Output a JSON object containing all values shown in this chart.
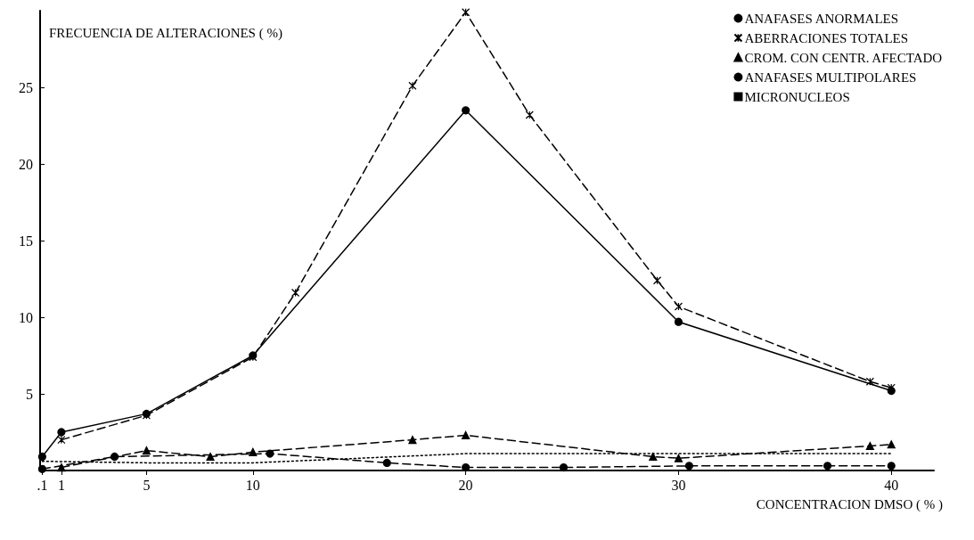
{
  "chart_data": {
    "type": "line",
    "xlabel": "CONCENTRACION DMSO ( % )",
    "ylabel": "FRECUENCIA DE ALTERACIONES ( %)",
    "xlim": [
      0,
      42
    ],
    "xticks": [
      {
        "value": 0.1,
        "label": ".1"
      },
      1,
      5,
      10,
      20,
      30,
      40
    ],
    "ylim": [
      0,
      30
    ],
    "yticks": [
      {
        "value": 0,
        "label": null
      },
      5,
      10,
      15,
      20,
      25
    ],
    "grid": false,
    "legend": "top right",
    "series": [
      {
        "name": "ANAFASES ANORMALES",
        "color": "#000000",
        "marker": "circle",
        "line_style": "solid",
        "x": [
          0.1,
          1,
          5,
          10,
          20,
          30,
          40
        ],
        "values": [
          0.9,
          2.5,
          3.7,
          7.5,
          23.5,
          9.7,
          5.2
        ]
      },
      {
        "name": "ABERRACIONES TOTALES",
        "color": "#000000",
        "marker": "cross",
        "line_style": "dashed",
        "x": [
          1,
          5,
          10,
          12,
          17.5,
          20,
          23,
          29,
          30,
          39,
          40
        ],
        "values": [
          2.0,
          3.6,
          7.4,
          11.6,
          25.1,
          29.9,
          23.2,
          12.4,
          10.7,
          5.8,
          5.4
        ]
      },
      {
        "name": "CROM. CON CENTR. AFECTADO",
        "color": "#000000",
        "marker": "triangle",
        "line_style": "dashed",
        "x": [
          1,
          5,
          8,
          10,
          17.5,
          20,
          28.8,
          30,
          39,
          40
        ],
        "values": [
          0.2,
          1.3,
          0.9,
          1.2,
          2.0,
          2.3,
          0.9,
          0.8,
          1.6,
          1.7
        ]
      },
      {
        "name": "ANAFASES MULTIPOLARES",
        "color": "#000000",
        "marker": "circle",
        "line_style": "dashed",
        "x": [
          0.1,
          3.5,
          10.8,
          16.3,
          20,
          24.6,
          30.5,
          37,
          40
        ],
        "values": [
          0.1,
          0.9,
          1.1,
          0.5,
          0.2,
          0.2,
          0.3,
          0.3,
          0.3
        ]
      },
      {
        "name": "MICRONUCLEOS",
        "color": "#000000",
        "marker": "none",
        "line_style": "dotted",
        "x": [
          0.1,
          5,
          10,
          20,
          30,
          40
        ],
        "values": [
          0.6,
          0.5,
          0.5,
          1.1,
          1.1,
          1.1
        ]
      }
    ]
  }
}
